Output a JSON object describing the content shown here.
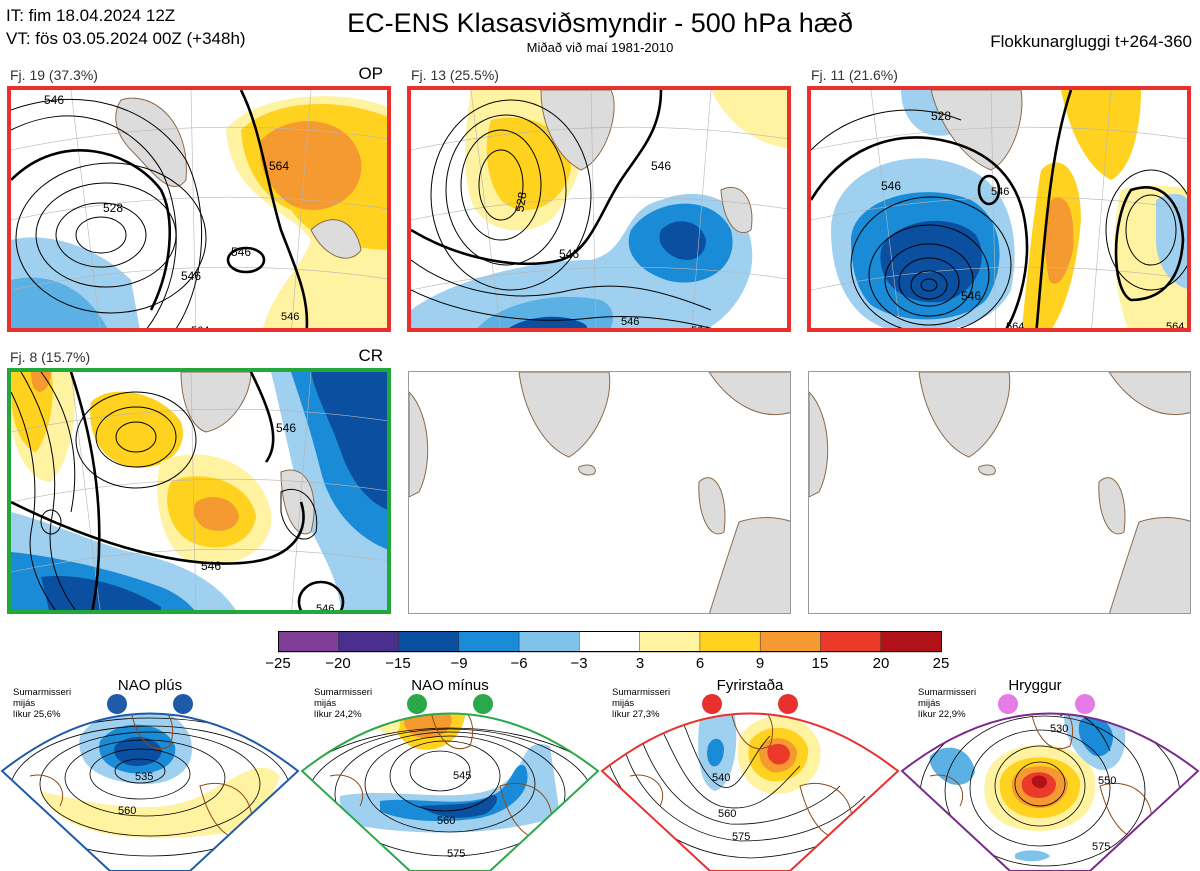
{
  "header": {
    "it": "IT: fim 18.04.2024 12Z",
    "vt": "VT: fös 03.05.2024 00Z  (+348h)",
    "title": "EC-ENS Klasasviðsmyndir - 500 hPa hæð",
    "subtitle": "Miðað við maí 1981-2010",
    "window": "Flokkunargluggi t+264-360"
  },
  "clusters": [
    {
      "label": "Fj. 19 (37.3%)",
      "tag": "OP",
      "frame_color": "#e8302e",
      "contours": [
        "546",
        "528",
        "546",
        "546",
        "564",
        "564",
        "546"
      ]
    },
    {
      "label": "Fj. 13 (25.5%)",
      "tag": "",
      "frame_color": "#e8302e",
      "contours": [
        "546",
        "528",
        "546",
        "546",
        "564"
      ]
    },
    {
      "label": "Fj. 11 (21.6%)",
      "tag": "",
      "frame_color": "#e8302e",
      "contours": [
        "528",
        "546",
        "546",
        "546",
        "564",
        "564"
      ]
    },
    {
      "label": "Fj. 8 (15.7%)",
      "tag": "CR",
      "frame_color": "#22a83a",
      "contours": [
        "546",
        "546",
        "546"
      ]
    }
  ],
  "colorbar": {
    "ticks": [
      "−25",
      "−20",
      "−15",
      "−9",
      "−6",
      "−3",
      "3",
      "6",
      "9",
      "15",
      "20",
      "25"
    ],
    "colors": [
      "#7f3f98",
      "#4a2f8f",
      "#0b4fa0",
      "#1a8bd6",
      "#7fc3ea",
      "#ffffff",
      "#fff2a0",
      "#ffd21f",
      "#f59a30",
      "#ec3a2a",
      "#b01218"
    ]
  },
  "regimes": [
    {
      "name": "NAO plús",
      "info": [
        "Sumarmisseri",
        "mijás",
        "líkur 25,6%"
      ],
      "color": "#1e5aa8",
      "contours": [
        "535",
        "560"
      ]
    },
    {
      "name": "NAO mínus",
      "info": [
        "Sumarmisseri",
        "mijás",
        "líkur 24,2%"
      ],
      "color": "#2aa84a",
      "contours": [
        "545",
        "560",
        "575"
      ]
    },
    {
      "name": "Fyrirstaða",
      "info": [
        "Sumarmisseri",
        "mijás",
        "líkur 27,3%"
      ],
      "color": "#e8302e",
      "contours": [
        "540",
        "560",
        "575"
      ]
    },
    {
      "name": "Hryggur",
      "info": [
        "Sumarmisseri",
        "mijás",
        "líkur 22,9%"
      ],
      "color": "#7a2a8a",
      "contours": [
        "530",
        "550",
        "575"
      ]
    }
  ]
}
